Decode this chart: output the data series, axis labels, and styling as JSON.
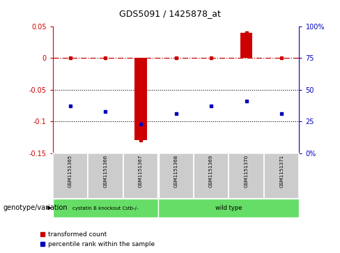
{
  "title": "GDS5091 / 1425878_at",
  "samples": [
    "GSM1151365",
    "GSM1151366",
    "GSM1151367",
    "GSM1151368",
    "GSM1151369",
    "GSM1151370",
    "GSM1151371"
  ],
  "transformed_count": [
    0.0,
    0.0,
    -0.13,
    0.0,
    0.0,
    0.04,
    0.0
  ],
  "percentile_rank_values": [
    37,
    33,
    23,
    31,
    37,
    41,
    31
  ],
  "ylim_left": [
    -0.15,
    0.05
  ],
  "ylim_right": [
    0,
    100
  ],
  "yticks_left": [
    -0.15,
    -0.1,
    -0.05,
    0.0,
    0.05
  ],
  "yticks_right": [
    0,
    25,
    50,
    75,
    100
  ],
  "ytick_labels_left": [
    "-0.15",
    "-0.1",
    "-0.05",
    "0",
    "0.05"
  ],
  "ytick_labels_right": [
    "0%",
    "25",
    "50",
    "75",
    "100%"
  ],
  "red_color": "#cc0000",
  "blue_color": "#0000bb",
  "dotted_lines": [
    -0.05,
    -0.1
  ],
  "genotype_label": "genotype/variation",
  "legend_transformed": "transformed count",
  "legend_percentile": "percentile rank within the sample",
  "group1_label": "cystatin B knockout Cstb-/-",
  "group2_label": "wild type",
  "sample_box_color": "#cccccc",
  "group_box_color": "#66dd66",
  "title_fontsize": 9,
  "axis_fontsize": 7,
  "sample_fontsize": 5,
  "group_fontsize": 6,
  "legend_fontsize": 6.5,
  "genotype_fontsize": 7
}
